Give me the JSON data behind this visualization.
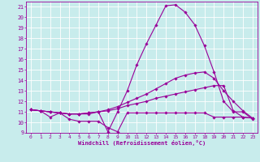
{
  "xlabel": "Windchill (Refroidissement éolien,°C)",
  "background_color": "#c8ecec",
  "line_color": "#990099",
  "grid_color": "#ffffff",
  "xlim": [
    -0.5,
    23.5
  ],
  "ylim": [
    9,
    21.5
  ],
  "yticks": [
    9,
    10,
    11,
    12,
    13,
    14,
    15,
    16,
    17,
    18,
    19,
    20,
    21
  ],
  "xticks": [
    0,
    1,
    2,
    3,
    4,
    5,
    6,
    7,
    8,
    9,
    10,
    11,
    12,
    13,
    14,
    15,
    16,
    17,
    18,
    19,
    20,
    21,
    22,
    23
  ],
  "lines": [
    {
      "x": [
        0,
        1,
        2,
        3,
        4,
        5,
        6,
        7,
        8,
        9,
        10,
        11,
        12,
        13,
        14,
        15,
        16,
        17,
        18,
        19,
        20,
        21,
        22,
        23
      ],
      "y": [
        11.2,
        11.1,
        10.5,
        10.9,
        10.3,
        10.1,
        10.1,
        10.1,
        9.5,
        9.1,
        10.9,
        10.9,
        10.9,
        10.9,
        10.9,
        10.9,
        10.9,
        10.9,
        10.9,
        10.5,
        10.5,
        10.5,
        10.5,
        10.4
      ]
    },
    {
      "x": [
        0,
        1,
        2,
        3,
        4,
        5,
        6,
        7,
        8,
        9,
        10,
        11,
        12,
        13,
        14,
        15,
        16,
        17,
        18,
        19,
        20,
        21,
        22,
        23
      ],
      "y": [
        11.2,
        11.1,
        11.0,
        10.9,
        10.8,
        10.8,
        10.9,
        11.0,
        11.1,
        11.3,
        11.6,
        11.8,
        12.0,
        12.3,
        12.5,
        12.7,
        12.9,
        13.1,
        13.3,
        13.5,
        13.5,
        11.1,
        10.5,
        10.4
      ]
    },
    {
      "x": [
        0,
        1,
        2,
        3,
        4,
        5,
        6,
        7,
        8,
        9,
        10,
        11,
        12,
        13,
        14,
        15,
        16,
        17,
        18,
        19,
        20,
        21,
        22,
        23
      ],
      "y": [
        11.2,
        11.1,
        11.0,
        10.9,
        10.8,
        10.8,
        10.9,
        11.0,
        11.2,
        11.5,
        11.9,
        12.3,
        12.7,
        13.2,
        13.7,
        14.2,
        14.5,
        14.7,
        14.8,
        14.2,
        13.0,
        12.0,
        11.1,
        10.4
      ]
    },
    {
      "x": [
        0,
        1,
        2,
        3,
        4,
        5,
        6,
        7,
        8,
        9,
        10,
        11,
        12,
        13,
        14,
        15,
        16,
        17,
        18,
        19,
        20,
        21,
        22,
        23
      ],
      "y": [
        11.2,
        11.1,
        11.0,
        10.9,
        10.8,
        10.8,
        10.8,
        11.0,
        9.1,
        11.0,
        13.0,
        15.5,
        17.5,
        19.3,
        21.1,
        21.2,
        20.5,
        19.3,
        17.3,
        14.8,
        12.0,
        11.0,
        11.0,
        10.3
      ]
    }
  ]
}
